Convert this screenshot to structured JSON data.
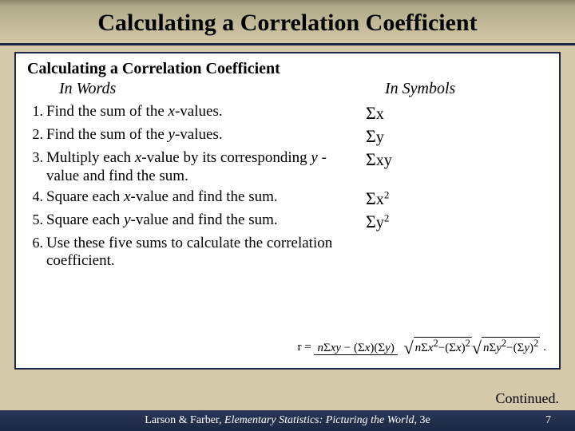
{
  "title": "Calculating a Correlation Coefficient",
  "subtitle": "Calculating a Correlation Coefficient",
  "columns": {
    "words": "In Words",
    "symbols": "In Symbols"
  },
  "steps": [
    {
      "num": "1.",
      "text_pre": "Find the sum of the ",
      "var": "x",
      "text_post": "-values.",
      "sym_html": "Σ<i>x</i>"
    },
    {
      "num": "2.",
      "text_pre": "Find the sum of the ",
      "var": "y",
      "text_post": "-values.",
      "sym_html": "Σ<i>y</i>"
    },
    {
      "num": "3.",
      "text_pre": "Multiply each ",
      "var": "x",
      "text_mid": "-value by its corresponding ",
      "var2": "y",
      "text_post": " -value and find the sum.",
      "sym_html": "Σ<i>xy</i>"
    },
    {
      "num": "4.",
      "text_pre": "Square each ",
      "var": "x",
      "text_post": "-value and find the sum.",
      "sym_html": "Σ<i>x</i><sup>2</sup>"
    },
    {
      "num": "5.",
      "text_pre": "Square each ",
      "var": "y",
      "text_post": "-value and find the sum.",
      "sym_html": "Σ<i>y</i><sup>2</sup>"
    },
    {
      "num": "6.",
      "text_pre": "Use these five sums to calculate            the correlation coefficient.",
      "sym_html": ""
    }
  ],
  "formula": {
    "lhs": "r =",
    "num": "nΣxy − (Σx)(Σy)",
    "den_left": "nΣx² − (Σx)²",
    "den_right": "nΣy² − (Σy)²"
  },
  "continued": "Continued.",
  "footer": {
    "authors": "Larson & Farber, ",
    "book": "Elementary Statistics: Picturing the World",
    "edition": ", 3e",
    "page": "7"
  },
  "colors": {
    "bg": "#d4c9a8",
    "navy": "#1a2845",
    "white": "#ffffff"
  }
}
